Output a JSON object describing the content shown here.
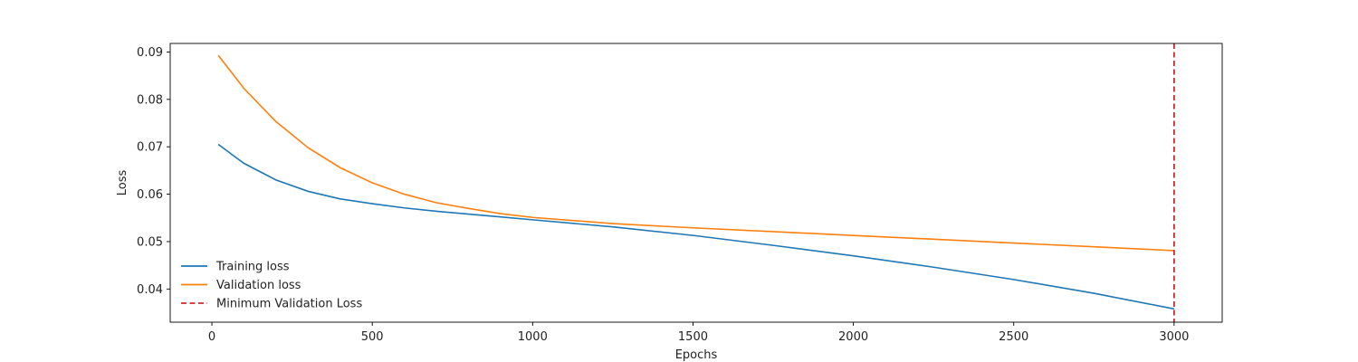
{
  "chart_data": {
    "type": "line",
    "title": "",
    "xlabel": "Epochs",
    "ylabel": "Loss",
    "xlim": [
      -130,
      3150
    ],
    "ylim": [
      0.033,
      0.0918
    ],
    "xticks": [
      0,
      500,
      1000,
      1500,
      2000,
      2500,
      3000
    ],
    "yticks": [
      0.04,
      0.05,
      0.06,
      0.07,
      0.08,
      0.09
    ],
    "xtick_labels": [
      "0",
      "500",
      "1000",
      "1500",
      "2000",
      "2500",
      "3000"
    ],
    "ytick_labels": [
      "0.04",
      "0.05",
      "0.06",
      "0.07",
      "0.08",
      "0.09"
    ],
    "grid": false,
    "legend_position": "bottom-left",
    "x": [
      20,
      100,
      200,
      300,
      400,
      500,
      600,
      700,
      800,
      900,
      1000,
      1250,
      1500,
      1750,
      2000,
      2250,
      2500,
      2750,
      3000
    ],
    "series": [
      {
        "name": "Training loss",
        "color": "#1f77b4",
        "style": "solid",
        "values": [
          0.0705,
          0.0665,
          0.063,
          0.0606,
          0.059,
          0.058,
          0.0571,
          0.0564,
          0.0558,
          0.0552,
          0.0546,
          0.0531,
          0.0513,
          0.0492,
          0.047,
          0.0446,
          0.042,
          0.0391,
          0.0358
        ]
      },
      {
        "name": "Validation loss",
        "color": "#ff7f0e",
        "style": "solid",
        "values": [
          0.0893,
          0.0823,
          0.0753,
          0.0698,
          0.0656,
          0.0624,
          0.06,
          0.0582,
          0.057,
          0.0559,
          0.0551,
          0.0538,
          0.0529,
          0.0521,
          0.0513,
          0.0505,
          0.0497,
          0.0489,
          0.0481
        ]
      }
    ],
    "vlines": [
      {
        "name": "Minimum Validation Loss",
        "x": 3000,
        "color": "#d62728",
        "style": "dashed"
      }
    ]
  }
}
